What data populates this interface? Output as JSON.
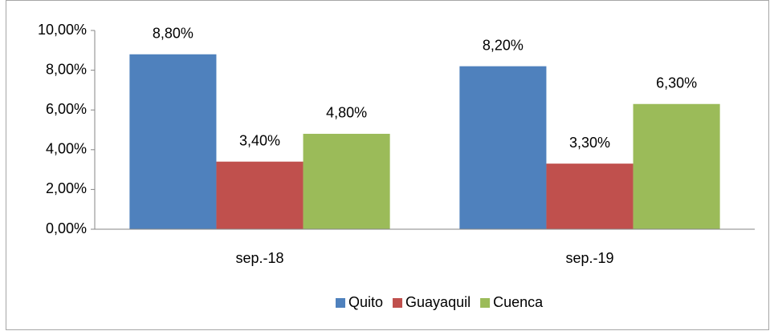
{
  "chart_data": {
    "type": "bar",
    "categories": [
      "sep.-18",
      "sep.-19"
    ],
    "series": [
      {
        "name": "Quito",
        "color": "#4f81bd",
        "values": [
          8.8,
          8.2
        ],
        "value_labels": [
          "8,80%",
          "8,20%"
        ]
      },
      {
        "name": "Guayaquil",
        "color": "#c0504d",
        "values": [
          3.4,
          3.3
        ],
        "value_labels": [
          "3,40%",
          "3,30%"
        ]
      },
      {
        "name": "Cuenca",
        "color": "#9bbb59",
        "values": [
          4.8,
          6.3
        ],
        "value_labels": [
          "4,80%",
          "6,30%"
        ]
      }
    ],
    "ylim": [
      0,
      10
    ],
    "yticks": [
      {
        "value": 0,
        "label": "0,00%"
      },
      {
        "value": 2,
        "label": "2,00%"
      },
      {
        "value": 4,
        "label": "4,00%"
      },
      {
        "value": 6,
        "label": "6,00%"
      },
      {
        "value": 8,
        "label": "8,00%"
      },
      {
        "value": 10,
        "label": "10,00%"
      }
    ],
    "legend": "bottom"
  }
}
